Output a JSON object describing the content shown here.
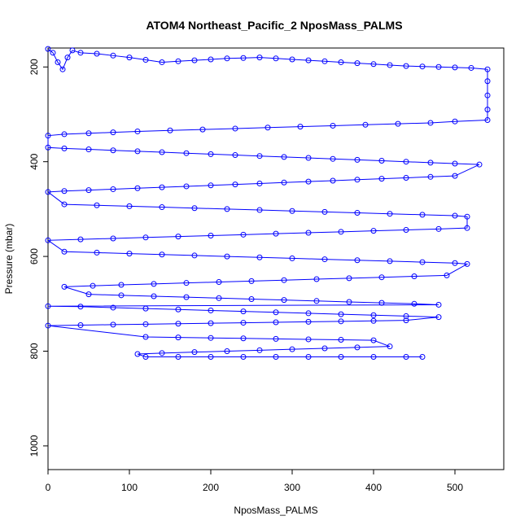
{
  "chart_data": {
    "type": "line",
    "title": "ATOM4 Northeast_Pacific_2 NposMass_PALMS",
    "xlabel": "NposMass_PALMS",
    "ylabel": "Pressure (mbar)",
    "xlim": [
      0,
      560
    ],
    "ylim": [
      1050,
      160
    ],
    "x_ticks": [
      0,
      100,
      200,
      300,
      400,
      500
    ],
    "y_ticks": [
      200,
      400,
      600,
      800,
      1000
    ],
    "grid": false,
    "legend": "none",
    "series": [
      {
        "color": "#0000ff",
        "marker": "open-circle",
        "points": [
          [
            0,
            162
          ],
          [
            6,
            170
          ],
          [
            12,
            190
          ],
          [
            18,
            205
          ],
          [
            24,
            180
          ],
          [
            30,
            165
          ],
          [
            40,
            170
          ],
          [
            60,
            172
          ],
          [
            80,
            176
          ],
          [
            100,
            180
          ],
          [
            120,
            185
          ],
          [
            140,
            190
          ],
          [
            160,
            188
          ],
          [
            180,
            186
          ],
          [
            200,
            184
          ],
          [
            220,
            182
          ],
          [
            240,
            181
          ],
          [
            260,
            180
          ],
          [
            280,
            182
          ],
          [
            300,
            184
          ],
          [
            320,
            186
          ],
          [
            340,
            188
          ],
          [
            360,
            190
          ],
          [
            380,
            192
          ],
          [
            400,
            194
          ],
          [
            420,
            196
          ],
          [
            440,
            198
          ],
          [
            460,
            199
          ],
          [
            480,
            200
          ],
          [
            500,
            201
          ],
          [
            520,
            202
          ],
          [
            540,
            205
          ],
          [
            540,
            230
          ],
          [
            540,
            260
          ],
          [
            540,
            290
          ],
          [
            540,
            312
          ],
          [
            500,
            315
          ],
          [
            470,
            318
          ],
          [
            430,
            320
          ],
          [
            390,
            322
          ],
          [
            350,
            324
          ],
          [
            310,
            326
          ],
          [
            270,
            328
          ],
          [
            230,
            330
          ],
          [
            190,
            332
          ],
          [
            150,
            334
          ],
          [
            110,
            336
          ],
          [
            80,
            338
          ],
          [
            50,
            340
          ],
          [
            20,
            342
          ],
          [
            0,
            345
          ],
          [
            0,
            370
          ],
          [
            20,
            372
          ],
          [
            50,
            374
          ],
          [
            80,
            376
          ],
          [
            110,
            378
          ],
          [
            140,
            380
          ],
          [
            170,
            382
          ],
          [
            200,
            384
          ],
          [
            230,
            386
          ],
          [
            260,
            388
          ],
          [
            290,
            390
          ],
          [
            320,
            392
          ],
          [
            350,
            394
          ],
          [
            380,
            396
          ],
          [
            410,
            398
          ],
          [
            440,
            400
          ],
          [
            470,
            402
          ],
          [
            500,
            404
          ],
          [
            530,
            406
          ],
          [
            500,
            430
          ],
          [
            470,
            432
          ],
          [
            440,
            434
          ],
          [
            410,
            436
          ],
          [
            380,
            438
          ],
          [
            350,
            440
          ],
          [
            320,
            442
          ],
          [
            290,
            444
          ],
          [
            260,
            446
          ],
          [
            230,
            448
          ],
          [
            200,
            450
          ],
          [
            170,
            452
          ],
          [
            140,
            454
          ],
          [
            110,
            456
          ],
          [
            80,
            458
          ],
          [
            50,
            460
          ],
          [
            20,
            462
          ],
          [
            0,
            464
          ],
          [
            20,
            490
          ],
          [
            60,
            492
          ],
          [
            100,
            494
          ],
          [
            140,
            496
          ],
          [
            180,
            498
          ],
          [
            220,
            500
          ],
          [
            260,
            502
          ],
          [
            300,
            504
          ],
          [
            340,
            506
          ],
          [
            380,
            508
          ],
          [
            420,
            510
          ],
          [
            460,
            512
          ],
          [
            500,
            514
          ],
          [
            515,
            516
          ],
          [
            515,
            540
          ],
          [
            480,
            542
          ],
          [
            440,
            544
          ],
          [
            400,
            546
          ],
          [
            360,
            548
          ],
          [
            320,
            550
          ],
          [
            280,
            552
          ],
          [
            240,
            554
          ],
          [
            200,
            556
          ],
          [
            160,
            558
          ],
          [
            120,
            560
          ],
          [
            80,
            562
          ],
          [
            40,
            564
          ],
          [
            0,
            566
          ],
          [
            20,
            590
          ],
          [
            60,
            592
          ],
          [
            100,
            594
          ],
          [
            140,
            596
          ],
          [
            180,
            598
          ],
          [
            220,
            600
          ],
          [
            260,
            602
          ],
          [
            300,
            604
          ],
          [
            340,
            606
          ],
          [
            380,
            608
          ],
          [
            420,
            610
          ],
          [
            460,
            612
          ],
          [
            500,
            614
          ],
          [
            515,
            616
          ],
          [
            490,
            640
          ],
          [
            450,
            642
          ],
          [
            410,
            644
          ],
          [
            370,
            646
          ],
          [
            330,
            648
          ],
          [
            290,
            650
          ],
          [
            250,
            652
          ],
          [
            210,
            654
          ],
          [
            170,
            656
          ],
          [
            130,
            658
          ],
          [
            90,
            660
          ],
          [
            55,
            662
          ],
          [
            20,
            664
          ],
          [
            50,
            680
          ],
          [
            90,
            682
          ],
          [
            130,
            684
          ],
          [
            170,
            686
          ],
          [
            210,
            688
          ],
          [
            250,
            690
          ],
          [
            290,
            692
          ],
          [
            330,
            694
          ],
          [
            370,
            696
          ],
          [
            410,
            698
          ],
          [
            450,
            700
          ],
          [
            480,
            702
          ],
          [
            0,
            705
          ],
          [
            40,
            706
          ],
          [
            80,
            708
          ],
          [
            120,
            710
          ],
          [
            160,
            712
          ],
          [
            200,
            714
          ],
          [
            240,
            716
          ],
          [
            280,
            718
          ],
          [
            320,
            720
          ],
          [
            360,
            722
          ],
          [
            400,
            724
          ],
          [
            440,
            726
          ],
          [
            480,
            728
          ],
          [
            440,
            735
          ],
          [
            400,
            736
          ],
          [
            360,
            737
          ],
          [
            320,
            738
          ],
          [
            280,
            739
          ],
          [
            240,
            740
          ],
          [
            200,
            741
          ],
          [
            160,
            742
          ],
          [
            120,
            743
          ],
          [
            80,
            744
          ],
          [
            40,
            745
          ],
          [
            0,
            746
          ],
          [
            120,
            770
          ],
          [
            160,
            771
          ],
          [
            200,
            772
          ],
          [
            240,
            773
          ],
          [
            280,
            774
          ],
          [
            320,
            775
          ],
          [
            360,
            776
          ],
          [
            400,
            777
          ],
          [
            420,
            790
          ],
          [
            380,
            792
          ],
          [
            340,
            794
          ],
          [
            300,
            796
          ],
          [
            260,
            798
          ],
          [
            220,
            800
          ],
          [
            180,
            802
          ],
          [
            140,
            804
          ],
          [
            110,
            806
          ],
          [
            120,
            812
          ],
          [
            160,
            812
          ],
          [
            200,
            812
          ],
          [
            240,
            812
          ],
          [
            280,
            812
          ],
          [
            320,
            812
          ],
          [
            360,
            812
          ],
          [
            400,
            812
          ],
          [
            440,
            812
          ],
          [
            460,
            812
          ]
        ]
      }
    ]
  }
}
